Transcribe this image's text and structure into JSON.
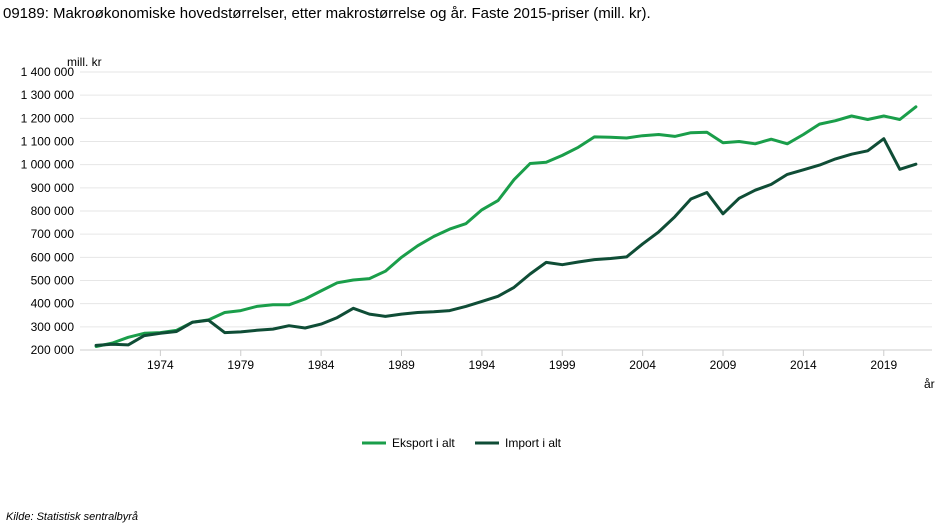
{
  "title": "09189: Makroøkonomiske hovedstørrelser, etter makrostørrelse og år. Faste 2015-priser (mill. kr).",
  "source": "Kilde:  Statistisk sentralbyrå",
  "chart_data": {
    "type": "line",
    "ylabel": "mill. kr",
    "xlabel": "år",
    "ylim": [
      200000,
      1400000
    ],
    "y_ticks": [
      200000,
      300000,
      400000,
      500000,
      600000,
      700000,
      800000,
      900000,
      1000000,
      1100000,
      1200000,
      1300000,
      1400000
    ],
    "y_tick_labels": [
      "200 000",
      "300 000",
      "400 000",
      "500 000",
      "600 000",
      "700 000",
      "800 000",
      "900 000",
      "1 000 000",
      "1 100 000",
      "1 200 000",
      "1 300 000",
      "1 400 000"
    ],
    "x_ticks": [
      1974,
      1979,
      1984,
      1989,
      1994,
      1999,
      2004,
      2009,
      2014,
      2019
    ],
    "x_range": [
      1969,
      2022
    ],
    "grid": "horizontal",
    "legend_position": "bottom",
    "x": [
      1970,
      1971,
      1972,
      1973,
      1974,
      1975,
      1976,
      1977,
      1978,
      1979,
      1980,
      1981,
      1982,
      1983,
      1984,
      1985,
      1986,
      1987,
      1988,
      1989,
      1990,
      1991,
      1992,
      1993,
      1994,
      1995,
      1996,
      1997,
      1998,
      1999,
      2000,
      2001,
      2002,
      2003,
      2004,
      2005,
      2006,
      2007,
      2008,
      2009,
      2010,
      2011,
      2012,
      2013,
      2014,
      2015,
      2016,
      2017,
      2018,
      2019,
      2020,
      2021
    ],
    "series": [
      {
        "name": "Eksport i alt",
        "color": "#1a9e4a",
        "values": [
          215000,
          230000,
          255000,
          272000,
          275000,
          285000,
          320000,
          330000,
          362000,
          370000,
          388000,
          395000,
          395000,
          420000,
          455000,
          490000,
          502000,
          508000,
          540000,
          600000,
          650000,
          690000,
          722000,
          745000,
          805000,
          845000,
          935000,
          1005000,
          1010000,
          1040000,
          1075000,
          1120000,
          1118000,
          1115000,
          1125000,
          1130000,
          1122000,
          1138000,
          1140000,
          1095000,
          1100000,
          1090000,
          1110000,
          1090000,
          1130000,
          1175000,
          1190000,
          1210000,
          1195000,
          1210000,
          1195000,
          1250000
        ]
      },
      {
        "name": "Import i alt",
        "color": "#0f4d36",
        "values": [
          220000,
          225000,
          222000,
          262000,
          272000,
          280000,
          320000,
          328000,
          275000,
          278000,
          285000,
          290000,
          305000,
          295000,
          312000,
          340000,
          380000,
          355000,
          345000,
          355000,
          362000,
          365000,
          370000,
          388000,
          410000,
          432000,
          470000,
          528000,
          578000,
          568000,
          580000,
          590000,
          595000,
          602000,
          658000,
          710000,
          775000,
          852000,
          880000,
          788000,
          855000,
          890000,
          915000,
          958000,
          978000,
          998000,
          1025000,
          1045000,
          1060000,
          1112000,
          980000,
          1002000
        ]
      }
    ]
  }
}
